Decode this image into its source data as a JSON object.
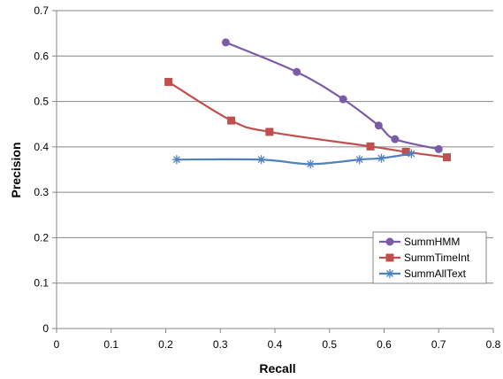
{
  "chart_data": {
    "type": "line",
    "title": "",
    "xlabel": "Recall",
    "ylabel": "Precision",
    "xlim": [
      0,
      0.8
    ],
    "ylim": [
      0,
      0.7
    ],
    "xticks": [
      0,
      0.1,
      0.2,
      0.3,
      0.4,
      0.5,
      0.6,
      0.7,
      0.8
    ],
    "yticks": [
      0,
      0.1,
      0.2,
      0.3,
      0.4,
      0.5,
      0.6,
      0.7
    ],
    "xtick_labels": [
      "0",
      "0.1",
      "0.2",
      "0.3",
      "0.4",
      "0.5",
      "0.6",
      "0.7",
      "0.8"
    ],
    "ytick_labels": [
      "0",
      "0.1",
      "0.2",
      "0.3",
      "0.4",
      "0.5",
      "0.6",
      "0.7"
    ],
    "grid": "horizontal",
    "legend_position": "bottom-right",
    "series": [
      {
        "name": "SummHMM",
        "color": "#7b5aa6",
        "marker": "circle",
        "x": [
          0.31,
          0.44,
          0.525,
          0.59,
          0.62,
          0.7
        ],
        "y": [
          0.63,
          0.565,
          0.505,
          0.447,
          0.417,
          0.395
        ]
      },
      {
        "name": "SummTimeInt",
        "color": "#c0504d",
        "marker": "square",
        "x": [
          0.205,
          0.32,
          0.39,
          0.575,
          0.64,
          0.715
        ],
        "y": [
          0.543,
          0.458,
          0.433,
          0.401,
          0.389,
          0.377
        ]
      },
      {
        "name": "SummAllText",
        "color": "#4f81bd",
        "marker": "star",
        "x": [
          0.22,
          0.375,
          0.465,
          0.555,
          0.595,
          0.65
        ],
        "y": [
          0.372,
          0.372,
          0.362,
          0.372,
          0.375,
          0.385
        ]
      }
    ]
  }
}
